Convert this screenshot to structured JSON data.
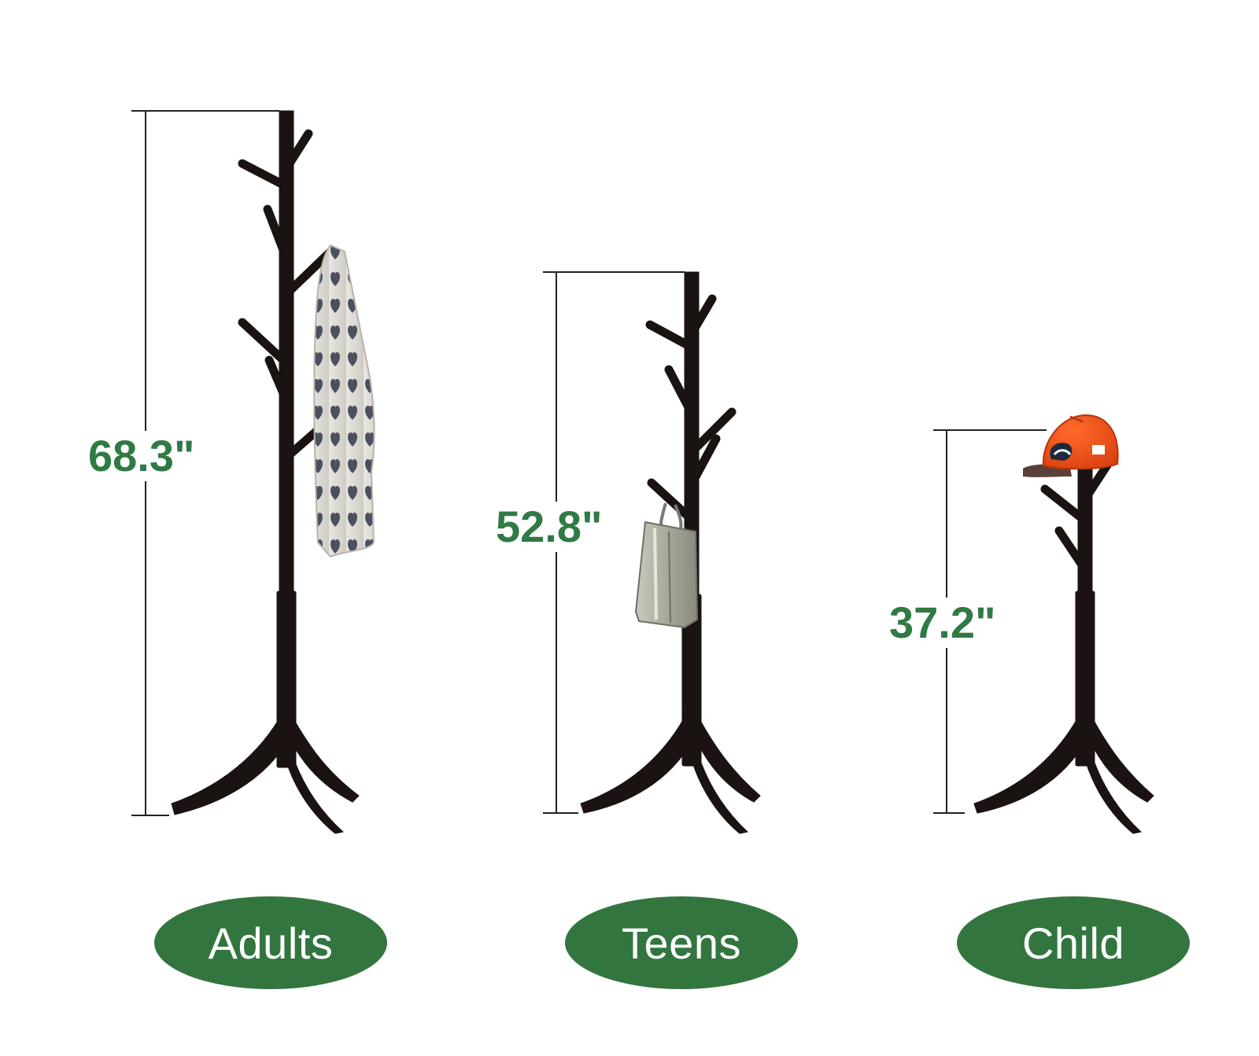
{
  "stands": [
    {
      "height_label": "68.3\"",
      "age_group": "Adults",
      "hung_item": "scarf"
    },
    {
      "height_label": "52.8\"",
      "age_group": "Teens",
      "hung_item": "tote-bag"
    },
    {
      "height_label": "37.2\"",
      "age_group": "Child",
      "hung_item": "baseball-cap"
    }
  ],
  "colors": {
    "wood": "#1b1311",
    "label_green": "#2f7a45",
    "pill_green": "#33753f",
    "pill_text": "#ffffff",
    "dimension_line": "#222222"
  }
}
